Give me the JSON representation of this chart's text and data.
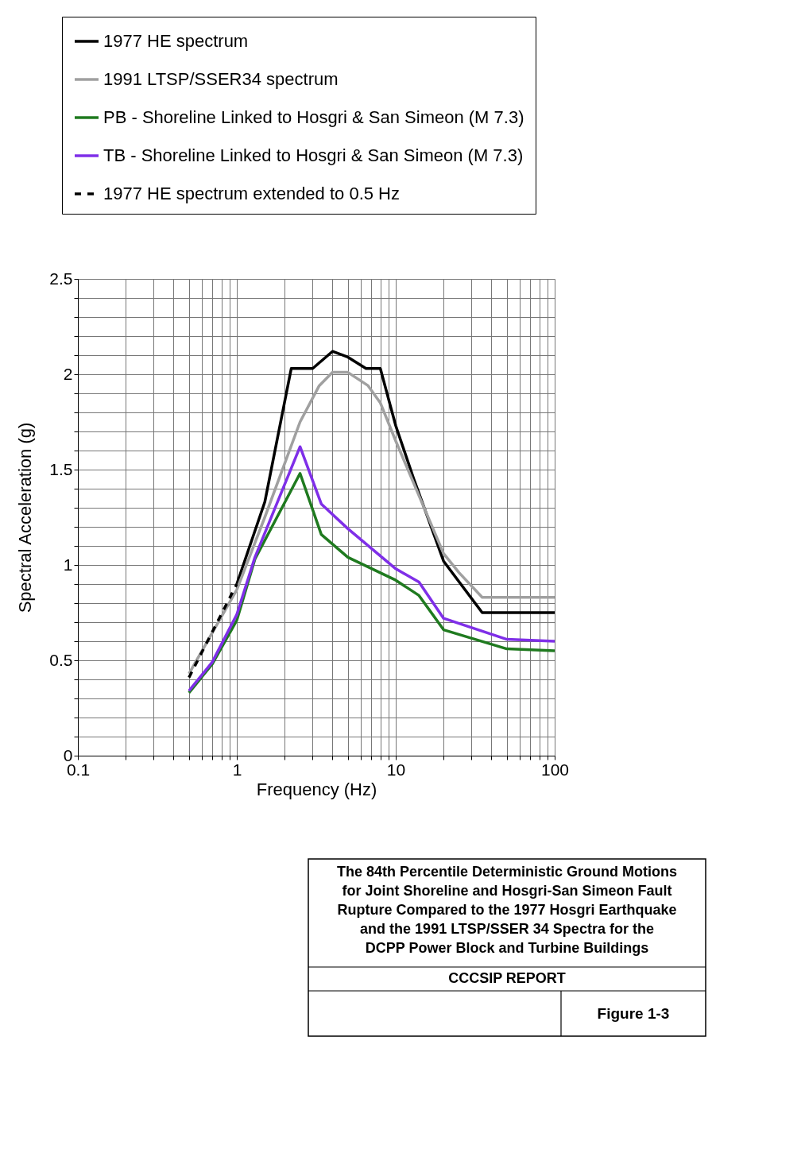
{
  "chart_data": {
    "type": "line",
    "title": "The 84th Percentile Deterministic Ground Motions\nfor Joint Shoreline and Hosgri-San Simeon Fault\nRupture Compared to the 1977 Hosgri Earthquake\nand  the 1991 LTSP/SSER 34 Spectra for the\nDCPP Power Block and Turbine Buildings",
    "xlabel": "Frequency (Hz)",
    "ylabel": "Spectral Acceleration (g)",
    "log": "x",
    "grid": true,
    "legend": "top",
    "xlim": [
      0.1,
      100
    ],
    "ylim": [
      0,
      2.5
    ],
    "xticks": [
      0.1,
      {
        "value": 0.2,
        "label": null
      },
      {
        "value": 0.3,
        "label": null
      },
      {
        "value": 0.4,
        "label": null
      },
      {
        "value": 0.5,
        "label": null
      },
      {
        "value": 0.6,
        "label": null
      },
      {
        "value": 0.7,
        "label": null
      },
      {
        "value": 0.8,
        "label": null
      },
      {
        "value": 0.9,
        "label": null
      },
      1,
      {
        "value": 2,
        "label": null
      },
      {
        "value": 3,
        "label": null
      },
      {
        "value": 4,
        "label": null
      },
      {
        "value": 5,
        "label": null
      },
      {
        "value": 6,
        "label": null
      },
      {
        "value": 7,
        "label": null
      },
      {
        "value": 8,
        "label": null
      },
      {
        "value": 9,
        "label": null
      },
      10,
      {
        "value": 20,
        "label": null
      },
      {
        "value": 30,
        "label": null
      },
      {
        "value": 40,
        "label": null
      },
      {
        "value": 50,
        "label": null
      },
      {
        "value": 60,
        "label": null
      },
      {
        "value": 70,
        "label": null
      },
      {
        "value": 80,
        "label": null
      },
      {
        "value": 90,
        "label": null
      },
      100
    ],
    "yticks": [
      0,
      {
        "value": 0.1,
        "label": null
      },
      {
        "value": 0.2,
        "label": null
      },
      {
        "value": 0.3,
        "label": null
      },
      {
        "value": 0.4,
        "label": null
      },
      0.5,
      {
        "value": 0.6,
        "label": null
      },
      {
        "value": 0.7,
        "label": null
      },
      {
        "value": 0.8,
        "label": null
      },
      {
        "value": 0.9,
        "label": null
      },
      1,
      {
        "value": 1.1,
        "label": null
      },
      {
        "value": 1.2,
        "label": null
      },
      {
        "value": 1.3,
        "label": null
      },
      {
        "value": 1.4,
        "label": null
      },
      1.5,
      {
        "value": 1.6,
        "label": null
      },
      {
        "value": 1.7,
        "label": null
      },
      {
        "value": 1.8,
        "label": null
      },
      {
        "value": 1.9,
        "label": null
      },
      2,
      {
        "value": 2.1,
        "label": null
      },
      {
        "value": 2.2,
        "label": null
      },
      {
        "value": 2.3,
        "label": null
      },
      {
        "value": 2.4,
        "label": null
      },
      2.5
    ],
    "series": [
      {
        "name": "1977 HE spectrum",
        "color": "#000000",
        "x": [
          1,
          1.5,
          2.2,
          3,
          4,
          5,
          6.5,
          8,
          10,
          13,
          20,
          35,
          100
        ],
        "values": [
          0.9,
          1.33,
          2.03,
          2.03,
          2.12,
          2.09,
          2.03,
          2.03,
          1.73,
          1.45,
          1.02,
          0.75,
          0.75
        ]
      },
      {
        "name": "1991 LTSP/SSER34 spectrum",
        "color": "#a0a0a0",
        "x": [
          0.5,
          1,
          1.5,
          2.5,
          3.3,
          4,
          5,
          6.7,
          8,
          10,
          20,
          25,
          35,
          100
        ],
        "values": [
          0.43,
          0.87,
          1.25,
          1.75,
          1.94,
          2.01,
          2.01,
          1.94,
          1.85,
          1.65,
          1.06,
          0.96,
          0.83,
          0.83
        ]
      },
      {
        "name": "PB - Shoreline Linked to Hosgri & San Simeon (M 7.3)",
        "color": "#1f7a1f",
        "x": [
          0.5,
          0.7,
          1,
          1.3,
          2.5,
          3.4,
          5,
          10,
          14,
          20,
          50,
          100
        ],
        "values": [
          0.33,
          0.48,
          0.71,
          1.03,
          1.48,
          1.16,
          1.04,
          0.92,
          0.84,
          0.66,
          0.56,
          0.55
        ]
      },
      {
        "name": "TB - Shoreline Linked to Hosgri & San Simeon (M 7.3)",
        "color": "#7f2fe8",
        "x": [
          0.5,
          0.7,
          1,
          1.3,
          2.5,
          3.4,
          5,
          10,
          14,
          20,
          50,
          100
        ],
        "values": [
          0.34,
          0.49,
          0.74,
          1.04,
          1.62,
          1.32,
          1.19,
          0.98,
          0.91,
          0.72,
          0.61,
          0.6
        ]
      },
      {
        "name": "1977 HE spectrum extended to 0.5 Hz",
        "color": "#000000",
        "line_style": "dashed",
        "x": [
          0.5,
          1
        ],
        "values": [
          0.41,
          0.9
        ]
      }
    ],
    "annotations": [
      "CCCSIP REPORT",
      "Figure 1-3"
    ]
  }
}
